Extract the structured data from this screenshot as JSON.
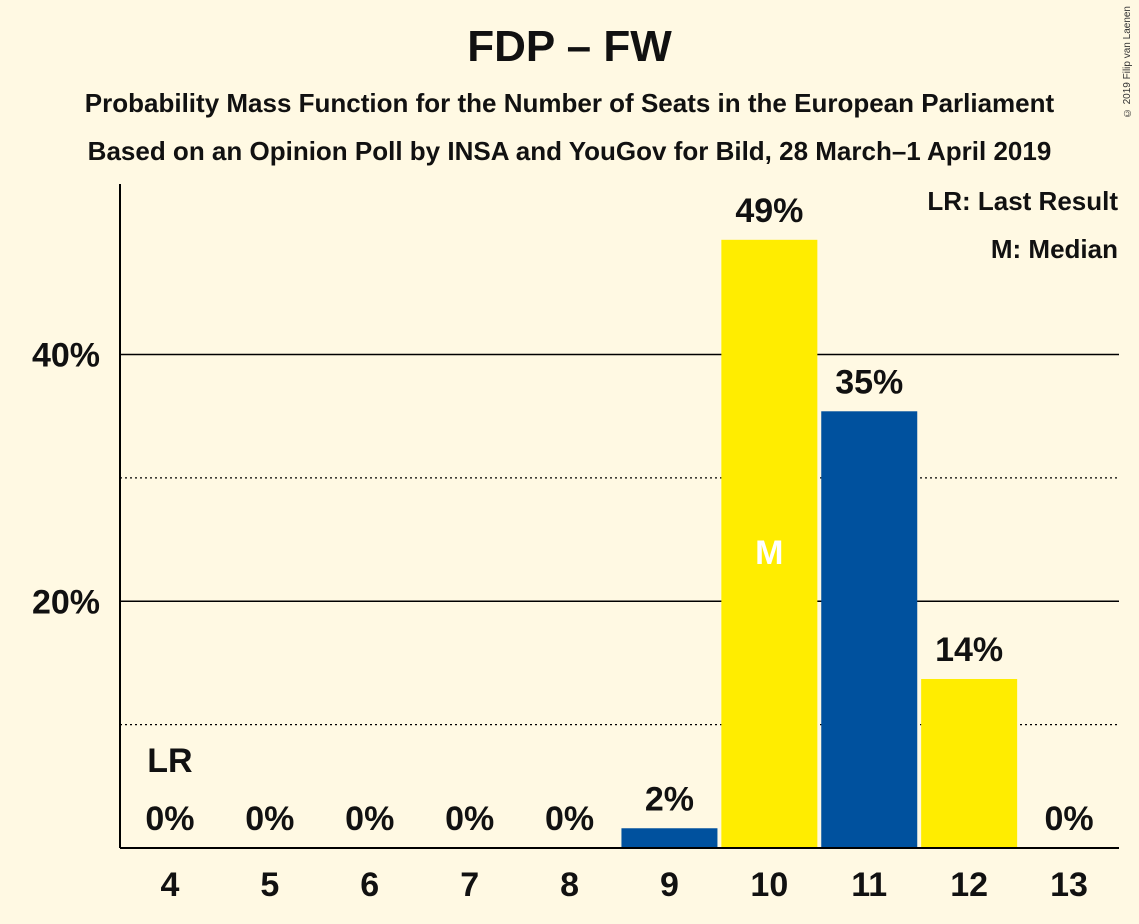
{
  "chart_data": {
    "type": "bar",
    "title": "FDP – FW",
    "subtitle": "Probability Mass Function for the Number of Seats in the European Parliament",
    "subtitle2": "Based on an Opinion Poll by INSA and YouGov for Bild, 28 March–1 April 2019",
    "categories": [
      "4",
      "5",
      "6",
      "7",
      "8",
      "9",
      "10",
      "11",
      "12",
      "13"
    ],
    "values": [
      0,
      0,
      0,
      0,
      0,
      1.6,
      49.3,
      35.4,
      13.7,
      0
    ],
    "labels": [
      "0%",
      "0%",
      "0%",
      "0%",
      "0%",
      "2%",
      "49%",
      "35%",
      "14%",
      "0%"
    ],
    "bar_colors": [
      "#00519E",
      "#FFED00",
      "#00519E",
      "#FFED00",
      "#00519E",
      "#00519E",
      "#FFED00",
      "#00519E",
      "#FFED00",
      "#00519E"
    ],
    "ylim": [
      0,
      54
    ],
    "y_ticks": [
      {
        "value": 20,
        "label": "20%"
      },
      {
        "value": 40,
        "label": "40%"
      }
    ],
    "minor_gridlines": [
      10,
      30
    ],
    "last_result_category": "4",
    "last_result_marker": "LR",
    "median_category": "10",
    "median_marker": "M",
    "legend": [
      "LR: Last Result",
      "M: Median"
    ],
    "legend_position": "top-right",
    "xlabel": "",
    "ylabel": ""
  },
  "copyright": "© 2019 Filip van Laenen",
  "colors": {
    "background": "#FFF9E3",
    "blue": "#00519E",
    "yellow": "#FFED00"
  }
}
